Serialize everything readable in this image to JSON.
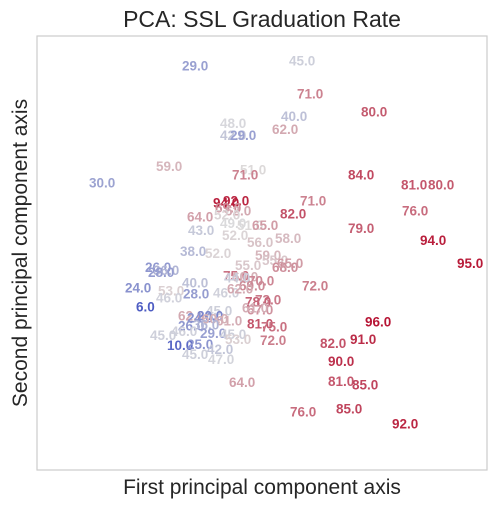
{
  "chart_data": {
    "type": "scatter",
    "title": "PCA: SSL Graduation Rate",
    "xlabel": "First principal component axis",
    "ylabel": "Second principal component axis",
    "xlim": [
      0,
      450
    ],
    "ylim": [
      0,
      430
    ],
    "grid": false,
    "legend": "none",
    "color_scale": {
      "name": "coolwarm",
      "domain": [
        0,
        100
      ],
      "low": "#3b4cc0",
      "mid": "#dddddd",
      "high": "#b40426"
    },
    "points": [
      {
        "x": 145,
        "y": 396,
        "label": "29.0",
        "value": 29
      },
      {
        "x": 198,
        "y": 198,
        "label": "55.0",
        "value": 55
      },
      {
        "x": 252,
        "y": 401,
        "label": "45.0",
        "value": 45
      },
      {
        "x": 260,
        "y": 368,
        "label": "71.0",
        "value": 71
      },
      {
        "x": 324,
        "y": 350,
        "label": "80.0",
        "value": 80
      },
      {
        "x": 183,
        "y": 339,
        "label": "48.0",
        "value": 48
      },
      {
        "x": 244,
        "y": 346,
        "label": "40.0",
        "value": 40
      },
      {
        "x": 235,
        "y": 333,
        "label": "62.0",
        "value": 62
      },
      {
        "x": 183,
        "y": 327,
        "label": "42.0",
        "value": 42
      },
      {
        "x": 193,
        "y": 327,
        "label": "29.0",
        "value": 29
      },
      {
        "x": 119,
        "y": 296,
        "label": "59.0",
        "value": 59
      },
      {
        "x": 52,
        "y": 280,
        "label": "30.0",
        "value": 30
      },
      {
        "x": 203,
        "y": 293,
        "label": "51.0",
        "value": 51
      },
      {
        "x": 195,
        "y": 288,
        "label": "71.0",
        "value": 71
      },
      {
        "x": 311,
        "y": 288,
        "label": "84.0",
        "value": 84
      },
      {
        "x": 364,
        "y": 278,
        "label": "81.0",
        "value": 81
      },
      {
        "x": 391,
        "y": 278,
        "label": "80.0",
        "value": 80
      },
      {
        "x": 186,
        "y": 262,
        "label": "92.0",
        "value": 92
      },
      {
        "x": 176,
        "y": 260,
        "label": "94.0",
        "value": 94
      },
      {
        "x": 178,
        "y": 255,
        "label": "69.0",
        "value": 69
      },
      {
        "x": 263,
        "y": 262,
        "label": "71.0",
        "value": 71
      },
      {
        "x": 243,
        "y": 249,
        "label": "82.0",
        "value": 82
      },
      {
        "x": 365,
        "y": 252,
        "label": "76.0",
        "value": 76
      },
      {
        "x": 150,
        "y": 246,
        "label": "64.0",
        "value": 64
      },
      {
        "x": 188,
        "y": 252,
        "label": "62.0",
        "value": 62
      },
      {
        "x": 177,
        "y": 248,
        "label": "52.0",
        "value": 52
      },
      {
        "x": 200,
        "y": 238,
        "label": "51.0",
        "value": 51
      },
      {
        "x": 215,
        "y": 238,
        "label": "65.0",
        "value": 65
      },
      {
        "x": 151,
        "y": 233,
        "label": "43.0",
        "value": 43
      },
      {
        "x": 185,
        "y": 228,
        "label": "52.0",
        "value": 52
      },
      {
        "x": 183,
        "y": 240,
        "label": "49.0",
        "value": 49
      },
      {
        "x": 311,
        "y": 235,
        "label": "79.0",
        "value": 79
      },
      {
        "x": 238,
        "y": 225,
        "label": "58.0",
        "value": 58
      },
      {
        "x": 210,
        "y": 221,
        "label": "56.0",
        "value": 56
      },
      {
        "x": 383,
        "y": 223,
        "label": "94.0",
        "value": 94
      },
      {
        "x": 143,
        "y": 212,
        "label": "38.0",
        "value": 38
      },
      {
        "x": 218,
        "y": 208,
        "label": "59.0",
        "value": 59
      },
      {
        "x": 168,
        "y": 210,
        "label": "52.0",
        "value": 52
      },
      {
        "x": 225,
        "y": 203,
        "label": "55.0",
        "value": 55
      },
      {
        "x": 420,
        "y": 200,
        "label": "95.0",
        "value": 95
      },
      {
        "x": 235,
        "y": 196,
        "label": "68.0",
        "value": 68
      },
      {
        "x": 240,
        "y": 200,
        "label": "65.0",
        "value": 65
      },
      {
        "x": 108,
        "y": 196,
        "label": "26.0",
        "value": 26
      },
      {
        "x": 116,
        "y": 193,
        "label": "36.0",
        "value": 36
      },
      {
        "x": 111,
        "y": 191,
        "label": "28.0",
        "value": 28
      },
      {
        "x": 186,
        "y": 188,
        "label": "75.0",
        "value": 75
      },
      {
        "x": 195,
        "y": 187,
        "label": "60.0",
        "value": 60
      },
      {
        "x": 211,
        "y": 183,
        "label": "70.0",
        "value": 70
      },
      {
        "x": 145,
        "y": 181,
        "label": "40.0",
        "value": 40
      },
      {
        "x": 187,
        "y": 186,
        "label": "44.0",
        "value": 44
      },
      {
        "x": 202,
        "y": 178,
        "label": "69.0",
        "value": 69
      },
      {
        "x": 265,
        "y": 178,
        "label": "72.0",
        "value": 72
      },
      {
        "x": 88,
        "y": 176,
        "label": "24.0",
        "value": 24
      },
      {
        "x": 121,
        "y": 173,
        "label": "53.0",
        "value": 53
      },
      {
        "x": 146,
        "y": 170,
        "label": "28.0",
        "value": 28
      },
      {
        "x": 176,
        "y": 171,
        "label": "46.0",
        "value": 46
      },
      {
        "x": 190,
        "y": 175,
        "label": "62.0",
        "value": 62
      },
      {
        "x": 218,
        "y": 164,
        "label": "73.0",
        "value": 73
      },
      {
        "x": 208,
        "y": 162,
        "label": "78.0",
        "value": 78
      },
      {
        "x": 119,
        "y": 166,
        "label": "46.0",
        "value": 46
      },
      {
        "x": 99,
        "y": 157,
        "label": "6.0",
        "value": 6
      },
      {
        "x": 210,
        "y": 154,
        "label": "67.0",
        "value": 67
      },
      {
        "x": 205,
        "y": 156,
        "label": "61.0",
        "value": 61
      },
      {
        "x": 169,
        "y": 153,
        "label": "45.0",
        "value": 45
      },
      {
        "x": 141,
        "y": 148,
        "label": "62.0",
        "value": 62
      },
      {
        "x": 160,
        "y": 148,
        "label": "20.0",
        "value": 20
      },
      {
        "x": 150,
        "y": 146,
        "label": "24.0",
        "value": 24
      },
      {
        "x": 165,
        "y": 145,
        "label": "60.0",
        "value": 60
      },
      {
        "x": 179,
        "y": 143,
        "label": "61.0",
        "value": 61
      },
      {
        "x": 328,
        "y": 142,
        "label": "96.0",
        "value": 96
      },
      {
        "x": 210,
        "y": 140,
        "label": "81.0",
        "value": 81
      },
      {
        "x": 224,
        "y": 137,
        "label": "75.0",
        "value": 75
      },
      {
        "x": 141,
        "y": 138,
        "label": "26.0",
        "value": 26
      },
      {
        "x": 156,
        "y": 139,
        "label": "36.0",
        "value": 36
      },
      {
        "x": 134,
        "y": 133,
        "label": "46.0",
        "value": 46
      },
      {
        "x": 163,
        "y": 131,
        "label": "29.0",
        "value": 29
      },
      {
        "x": 183,
        "y": 130,
        "label": "45.0",
        "value": 45
      },
      {
        "x": 188,
        "y": 125,
        "label": "53.0",
        "value": 53
      },
      {
        "x": 113,
        "y": 129,
        "label": "45.0",
        "value": 45
      },
      {
        "x": 223,
        "y": 124,
        "label": "72.0",
        "value": 72
      },
      {
        "x": 283,
        "y": 121,
        "label": "82.0",
        "value": 82
      },
      {
        "x": 313,
        "y": 125,
        "label": "91.0",
        "value": 91
      },
      {
        "x": 130,
        "y": 119,
        "label": "10.0",
        "value": 10
      },
      {
        "x": 150,
        "y": 120,
        "label": "25.0",
        "value": 25
      },
      {
        "x": 170,
        "y": 115,
        "label": "42.0",
        "value": 42
      },
      {
        "x": 145,
        "y": 110,
        "label": "45.0",
        "value": 45
      },
      {
        "x": 171,
        "y": 105,
        "label": "47.0",
        "value": 47
      },
      {
        "x": 291,
        "y": 103,
        "label": "90.0",
        "value": 90
      },
      {
        "x": 192,
        "y": 82,
        "label": "64.0",
        "value": 64
      },
      {
        "x": 291,
        "y": 83,
        "label": "81.0",
        "value": 81
      },
      {
        "x": 315,
        "y": 80,
        "label": "85.0",
        "value": 85
      },
      {
        "x": 253,
        "y": 53,
        "label": "76.0",
        "value": 76
      },
      {
        "x": 299,
        "y": 56,
        "label": "85.0",
        "value": 85
      },
      {
        "x": 355,
        "y": 41,
        "label": "92.0",
        "value": 92
      }
    ]
  }
}
